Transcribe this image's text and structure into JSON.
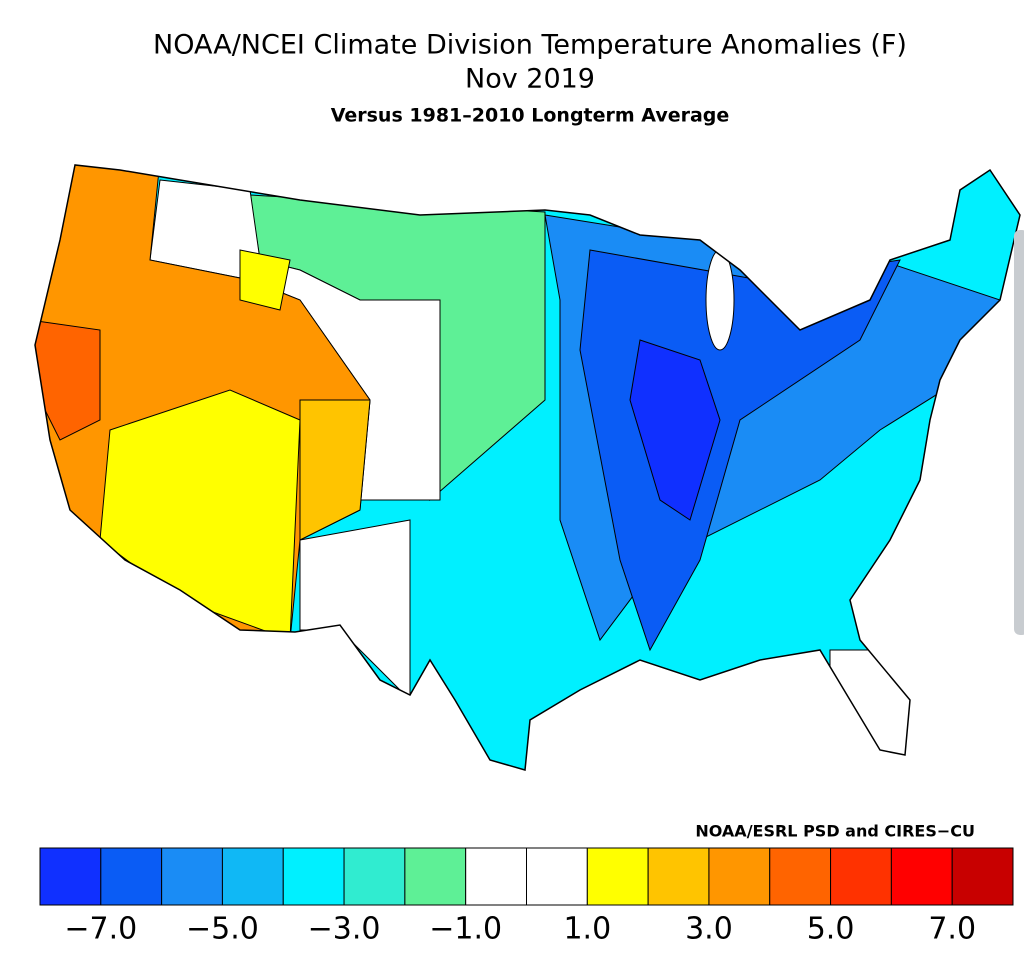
{
  "header": {
    "title": "NOAA/NCEI Climate Division Temperature Anomalies (F)",
    "subtitle": "Nov 2019",
    "caption": "Versus 1981–2010 Longterm Average"
  },
  "credit": "NOAA/ESRL PSD and CIRES−CU",
  "colorbar": {
    "range": [
      -8,
      8
    ],
    "colors": [
      "#1030ff",
      "#0a5cf5",
      "#1a8cf5",
      "#10b8f5",
      "#00f0ff",
      "#30ecd0",
      "#5ef096",
      "#ffffff",
      "#ffffff",
      "#ffff00",
      "#ffc400",
      "#ff9600",
      "#ff6400",
      "#ff3200",
      "#ff0000",
      "#c80000"
    ],
    "ticks": [
      {
        "value": -7,
        "label": "−7.0"
      },
      {
        "value": -5,
        "label": "−5.0"
      },
      {
        "value": -3,
        "label": "−3.0"
      },
      {
        "value": -1,
        "label": "−1.0"
      },
      {
        "value": 1,
        "label": "1.0"
      },
      {
        "value": 3,
        "label": "3.0"
      },
      {
        "value": 5,
        "label": "5.0"
      },
      {
        "value": 7,
        "label": "7.0"
      }
    ]
  }
}
